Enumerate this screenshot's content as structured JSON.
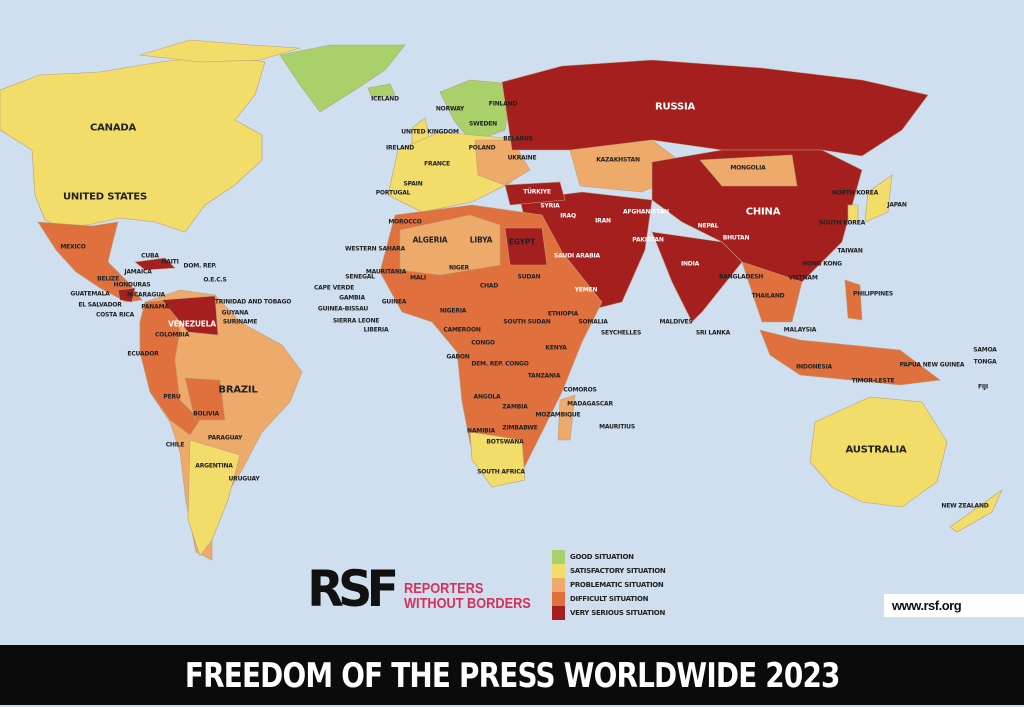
{
  "title": "FREEDOM OF THE PRESS WORLDWIDE 2023",
  "logo": {
    "mark": "RSF",
    "line1": "REPORTERS",
    "line2": "WITHOUT BORDERS"
  },
  "url": "www.rsf.org",
  "legend": [
    {
      "label": "GOOD SITUATION",
      "color": "#a9d06a"
    },
    {
      "label": "SATISFACTORY SITUATION",
      "color": "#f2dc6a"
    },
    {
      "label": "PROBLEMATIC SITUATION",
      "color": "#eeaa6a"
    },
    {
      "label": "DIFFICULT SITUATION",
      "color": "#e0713f"
    },
    {
      "label": "VERY SERIOUS SITUATION",
      "color": "#a51f1f"
    }
  ],
  "ocean_color": "#cfdff0",
  "countries": [
    "CANADA",
    "UNITED STATES",
    "MEXICO",
    "CUBA",
    "HAITI",
    "DOM. REP.",
    "JAMAICA",
    "BELIZE",
    "GUATEMALA",
    "HONDURAS",
    "EL SALVADOR",
    "NICARAGUA",
    "COSTA RICA",
    "PANAMA",
    "O.E.C.S",
    "TRINIDAD AND TOBAGO",
    "GUYANA",
    "SURINAME",
    "VENEZUELA",
    "COLOMBIA",
    "ECUADOR",
    "PERU",
    "BRAZIL",
    "BOLIVIA",
    "PARAGUAY",
    "CHILE",
    "ARGENTINA",
    "URUGUAY",
    "ICELAND",
    "NORWAY",
    "SWEDEN",
    "FINLAND",
    "UNITED KINGDOM",
    "IRELAND",
    "FRANCE",
    "SPAIN",
    "PORTUGAL",
    "POLAND",
    "UKRAINE",
    "BELARUS",
    "RUSSIA",
    "KAZAKHSTAN",
    "MONGOLIA",
    "CHINA",
    "INDIA",
    "IRAN",
    "IRAQ",
    "SYRIA",
    "TÜRKIYE",
    "AFGHANISTAN",
    "PAKISTAN",
    "SAUDI ARABIA",
    "YEMEN",
    "EGYPT",
    "LIBYA",
    "ALGERIA",
    "MOROCCO",
    "WESTERN SAHARA",
    "MAURITANIA",
    "MALI",
    "NIGER",
    "CHAD",
    "SUDAN",
    "SOUTH SUDAN",
    "ETHIOPIA",
    "SOMALIA",
    "KENYA",
    "NIGERIA",
    "CAMEROON",
    "GABON",
    "CONGO",
    "DEM. REP. CONGO",
    "TANZANIA",
    "ANGOLA",
    "ZAMBIA",
    "NAMIBIA",
    "BOTSWANA",
    "ZIMBABWE",
    "MOZAMBIQUE",
    "SOUTH AFRICA",
    "MADAGASCAR",
    "COMOROS",
    "MAURITIUS",
    "SEYCHELLES",
    "SENEGAL",
    "GAMBIA",
    "GUINEA-BISSAU",
    "GUINEA",
    "SIERRA LEONE",
    "LIBERIA",
    "CAPE VERDE",
    "JAPAN",
    "NORTH KOREA",
    "SOUTH KOREA",
    "TAIWAN",
    "HONG KONG",
    "PHILIPPINES",
    "VIETNAM",
    "THAILAND",
    "MALAYSIA",
    "INDONESIA",
    "PAPUA NEW GUINEA",
    "TIMOR-LESTE",
    "AUSTRALIA",
    "NEW ZEALAND",
    "FIJI",
    "SAMOA",
    "TONGA",
    "SRI LANKA",
    "MALDIVES",
    "BANGLADESH",
    "NEPAL",
    "BHUTAN"
  ]
}
